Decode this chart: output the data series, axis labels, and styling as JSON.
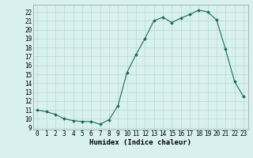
{
  "x": [
    0,
    1,
    2,
    3,
    4,
    5,
    6,
    7,
    8,
    9,
    10,
    11,
    12,
    13,
    14,
    15,
    16,
    17,
    18,
    19,
    20,
    21,
    22,
    23
  ],
  "y": [
    11.0,
    10.8,
    10.5,
    10.0,
    9.8,
    9.7,
    9.7,
    9.4,
    9.9,
    11.5,
    15.2,
    17.2,
    19.0,
    21.0,
    21.4,
    20.8,
    21.3,
    21.7,
    22.2,
    22.0,
    21.1,
    17.8,
    14.2,
    12.5
  ],
  "xlabel": "Humidex (Indice chaleur)",
  "xlim": [
    -0.5,
    23.5
  ],
  "ylim": [
    8.8,
    22.8
  ],
  "yticks": [
    9,
    10,
    11,
    12,
    13,
    14,
    15,
    16,
    17,
    18,
    19,
    20,
    21,
    22
  ],
  "xticks": [
    0,
    1,
    2,
    3,
    4,
    5,
    6,
    7,
    8,
    9,
    10,
    11,
    12,
    13,
    14,
    15,
    16,
    17,
    18,
    19,
    20,
    21,
    22,
    23
  ],
  "line_color": "#1a6b5a",
  "marker": "D",
  "marker_size": 2.0,
  "bg_color": "#d8f0f0",
  "grid_color": "#b8d8d8",
  "label_fontsize": 6.5,
  "tick_fontsize": 5.5
}
